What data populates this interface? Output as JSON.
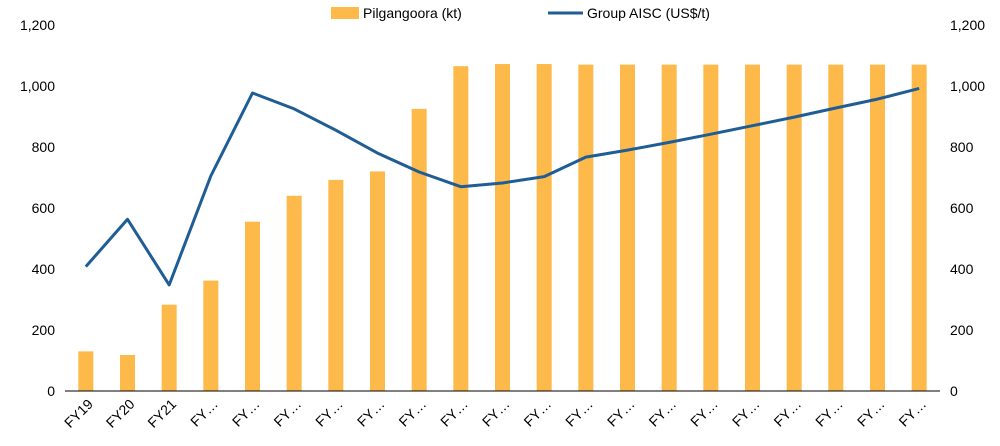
{
  "chart_data": {
    "type": "bar",
    "categories": [
      "FY19",
      "FY20",
      "FY21",
      "FY…",
      "FY…",
      "FY…",
      "FY…",
      "FY…",
      "FY…",
      "FY…",
      "FY…",
      "FY…",
      "FY…",
      "FY…",
      "FY…",
      "FY…",
      "FY…",
      "FY…",
      "FY…",
      "FY…",
      "FY…"
    ],
    "series": [
      {
        "name": "Pilgangoora (kt)",
        "type": "bar",
        "axis": "left",
        "color": "#FDB94A",
        "values": [
          130,
          118,
          283,
          362,
          555,
          640,
          692,
          720,
          925,
          1065,
          1072,
          1072,
          1070,
          1070,
          1070,
          1070,
          1070,
          1070,
          1070,
          1070,
          1070
        ]
      },
      {
        "name": "Group AISC (US$/t)",
        "type": "line",
        "axis": "right",
        "color": "#1F5D94",
        "values": [
          408,
          563,
          348,
          705,
          977,
          925,
          855,
          780,
          718,
          670,
          682,
          703,
          767,
          790,
          815,
          842,
          870,
          898,
          928,
          957,
          992
        ]
      }
    ],
    "left_axis": {
      "ylim": [
        0,
        1200
      ],
      "ticks": [
        "0",
        "200",
        "400",
        "600",
        "800",
        "1,000",
        "1,200"
      ]
    },
    "right_axis": {
      "ylim": [
        0,
        1200
      ],
      "ticks": [
        "0",
        "200",
        "400",
        "600",
        "800",
        "1,000",
        "1,200"
      ]
    },
    "legend_position": "top-center",
    "grid": false
  }
}
